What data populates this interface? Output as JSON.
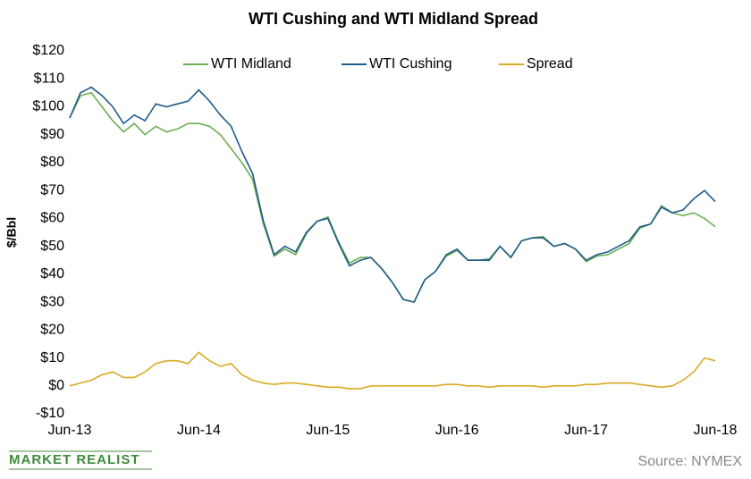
{
  "chart_data": {
    "type": "line",
    "title": "WTI Cushing  and WTI Midland  Spread",
    "ylabel": "$/Bbl",
    "x": [
      "Jun-13",
      "Jul-13",
      "Aug-13",
      "Sep-13",
      "Oct-13",
      "Nov-13",
      "Dec-13",
      "Jan-14",
      "Feb-14",
      "Mar-14",
      "Apr-14",
      "May-14",
      "Jun-14",
      "Jul-14",
      "Aug-14",
      "Sep-14",
      "Oct-14",
      "Nov-14",
      "Dec-14",
      "Jan-15",
      "Feb-15",
      "Mar-15",
      "Apr-15",
      "May-15",
      "Jun-15",
      "Jul-15",
      "Aug-15",
      "Sep-15",
      "Oct-15",
      "Nov-15",
      "Dec-15",
      "Jan-16",
      "Feb-16",
      "Mar-16",
      "Apr-16",
      "May-16",
      "Jun-16",
      "Jul-16",
      "Aug-16",
      "Sep-16",
      "Oct-16",
      "Nov-16",
      "Dec-16",
      "Jan-17",
      "Feb-17",
      "Mar-17",
      "Apr-17",
      "May-17",
      "Jun-17",
      "Jul-17",
      "Aug-17",
      "Sep-17",
      "Oct-17",
      "Nov-17",
      "Dec-17",
      "Jan-18",
      "Feb-18",
      "Mar-18",
      "Apr-18",
      "May-18",
      "Jun-18"
    ],
    "xticks": [
      "Jun-13",
      "Jun-14",
      "Jun-15",
      "Jun-16",
      "Jun-17",
      "Jun-18"
    ],
    "series": [
      {
        "name": "WTI Midland",
        "color": "#6aae52",
        "values": [
          96,
          104,
          105,
          100,
          95,
          91,
          94,
          90,
          93,
          91,
          92,
          94,
          94,
          93,
          90,
          85,
          80,
          74,
          58,
          46.5,
          49,
          47,
          54.5,
          59,
          60.5,
          51.5,
          44,
          46,
          46,
          42,
          37,
          31,
          30,
          38,
          41,
          46.5,
          48.5,
          45,
          45,
          45.5,
          50,
          46,
          52,
          53,
          53.5,
          50,
          51,
          49,
          44.5,
          46.5,
          47,
          49,
          51,
          56.5,
          58,
          64.5,
          62,
          61,
          62,
          60,
          57
        ]
      },
      {
        "name": "WTI Cushing",
        "color": "#1f5c8b",
        "values": [
          96,
          105,
          107,
          104,
          100,
          94,
          97,
          95,
          101,
          100,
          101,
          102,
          106,
          102,
          97,
          93,
          84,
          76,
          59,
          47,
          50,
          48,
          55,
          59,
          60,
          51,
          43,
          45,
          46,
          42,
          37,
          31,
          30,
          38,
          41,
          47,
          49,
          45,
          45,
          45,
          50,
          46,
          52,
          53,
          53,
          50,
          51,
          49,
          45,
          47,
          48,
          50,
          52,
          57,
          58,
          64,
          62,
          63,
          67,
          70,
          66
        ]
      },
      {
        "name": "Spread",
        "color": "#d9aa22",
        "values": [
          0,
          1,
          2,
          4,
          5,
          3,
          3,
          5,
          8,
          9,
          9,
          8,
          12,
          9,
          7,
          8,
          4,
          2,
          1,
          0.5,
          1,
          1,
          0.5,
          0,
          -0.5,
          -0.5,
          -1,
          -1,
          0,
          0,
          0,
          0,
          0,
          0,
          0,
          0.5,
          0.5,
          0,
          0,
          -0.5,
          0,
          0,
          0,
          0,
          -0.5,
          0,
          0,
          0,
          0.5,
          0.5,
          1,
          1,
          1,
          0.5,
          0,
          -0.5,
          0,
          2,
          5,
          10,
          9
        ]
      }
    ],
    "ylim": [
      -10,
      120
    ],
    "yticks": [
      {
        "value": -10,
        "label": "-$10"
      },
      {
        "value": 0,
        "label": "$0"
      },
      {
        "value": 10,
        "label": "$10"
      },
      {
        "value": 20,
        "label": "$20"
      },
      {
        "value": 30,
        "label": "$30"
      },
      {
        "value": 40,
        "label": "$40"
      },
      {
        "value": 50,
        "label": "$50"
      },
      {
        "value": 60,
        "label": "$60"
      },
      {
        "value": 70,
        "label": "$70"
      },
      {
        "value": 80,
        "label": "$80"
      },
      {
        "value": 90,
        "label": "$90"
      },
      {
        "value": 100,
        "label": "$100"
      },
      {
        "value": 110,
        "label": "$110"
      },
      {
        "value": 120,
        "label": "$120"
      }
    ],
    "grid": false,
    "legend": "top",
    "brand": "MARKET REALIST",
    "source": "Source: NYMEX"
  }
}
